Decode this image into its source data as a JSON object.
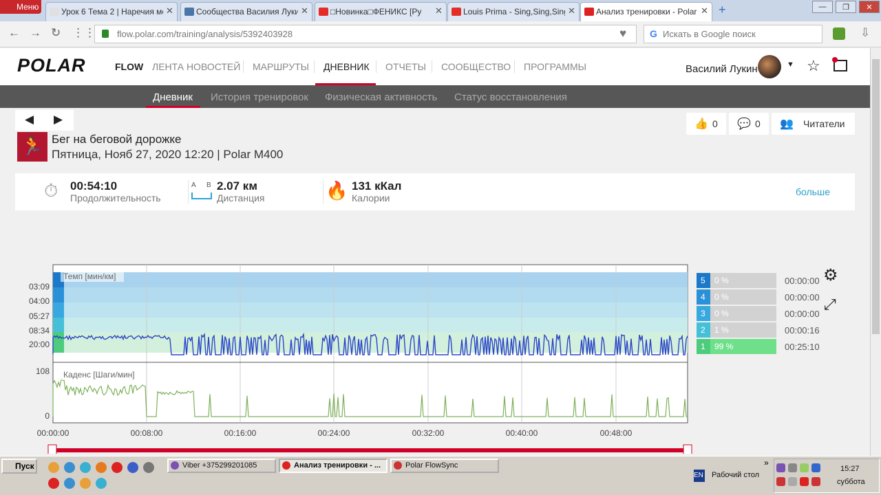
{
  "browser": {
    "menu": "Меню",
    "tabs": [
      "Урок 6 Тема 2 | Наречия ме",
      "Сообщества Василия Лукин",
      "□Новинка□ФЕНИКС [Ру",
      "Louis Prima - Sing,Sing,Sing (",
      "Анализ тренировки - Polar F"
    ],
    "url": "flow.polar.com/training/analysis/5392403928",
    "search": "Искать в Google поиск"
  },
  "header": {
    "logo": "POLAR",
    "flow": "FLOW",
    "nav": [
      "ЛЕНТА НОВОСТЕЙ",
      "МАРШРУТЫ",
      "ДНЕВНИК",
      "ОТЧЕТЫ",
      "СООБЩЕСТВО",
      "ПРОГРАММЫ"
    ],
    "user": "Василий Лукин"
  },
  "subnav": [
    "Дневник",
    "История тренировок",
    "Физическая активность",
    "Статус восстановления"
  ],
  "workout": {
    "sport": "Бег на беговой дорожке",
    "date": "Пятница, Нояб 27, 2020 12:20 | Polar M400",
    "likes": "0",
    "comments": "0",
    "followers": "Читатели"
  },
  "summary": [
    {
      "value": "00:54:10",
      "label": "Продолжительность"
    },
    {
      "value": "2.07 км",
      "label": "Дистанция"
    },
    {
      "value": "131 кКал",
      "label": "Калории"
    }
  ],
  "distance_marks": [
    "A",
    "B"
  ],
  "more": "больше",
  "chart": {
    "pace_label": "Темп [мин/км]",
    "pace_ticks": [
      "03:09",
      "04:00",
      "05:27",
      "08:34",
      "20:00"
    ],
    "cadence_label": "Каденс [Шаги/мин]",
    "cadence_ticks": [
      "108",
      "0"
    ],
    "x_ticks": [
      "00:00:00",
      "00:08:00",
      "00:16:00",
      "00:24:00",
      "00:32:00",
      "00:40:00",
      "00:48:00"
    ]
  },
  "zones": [
    {
      "zone": "5",
      "share": "0 %",
      "time": "00:00:00"
    },
    {
      "zone": "4",
      "share": "0 %",
      "time": "00:00:00"
    },
    {
      "zone": "3",
      "share": "0 %",
      "time": "00:00:00"
    },
    {
      "zone": "2",
      "share": "1 %",
      "time": "00:00:16"
    },
    {
      "zone": "1",
      "share": "99 %",
      "time": "00:25:10"
    }
  ],
  "taskbar": {
    "start": "Пуск",
    "windows": [
      "Viber +375299201085",
      "Анализ тренировки - ...",
      "Polar FlowSync"
    ],
    "lang": "EN",
    "desktop": "Рабочий стол",
    "time": "15:27",
    "day": "суббота"
  }
}
